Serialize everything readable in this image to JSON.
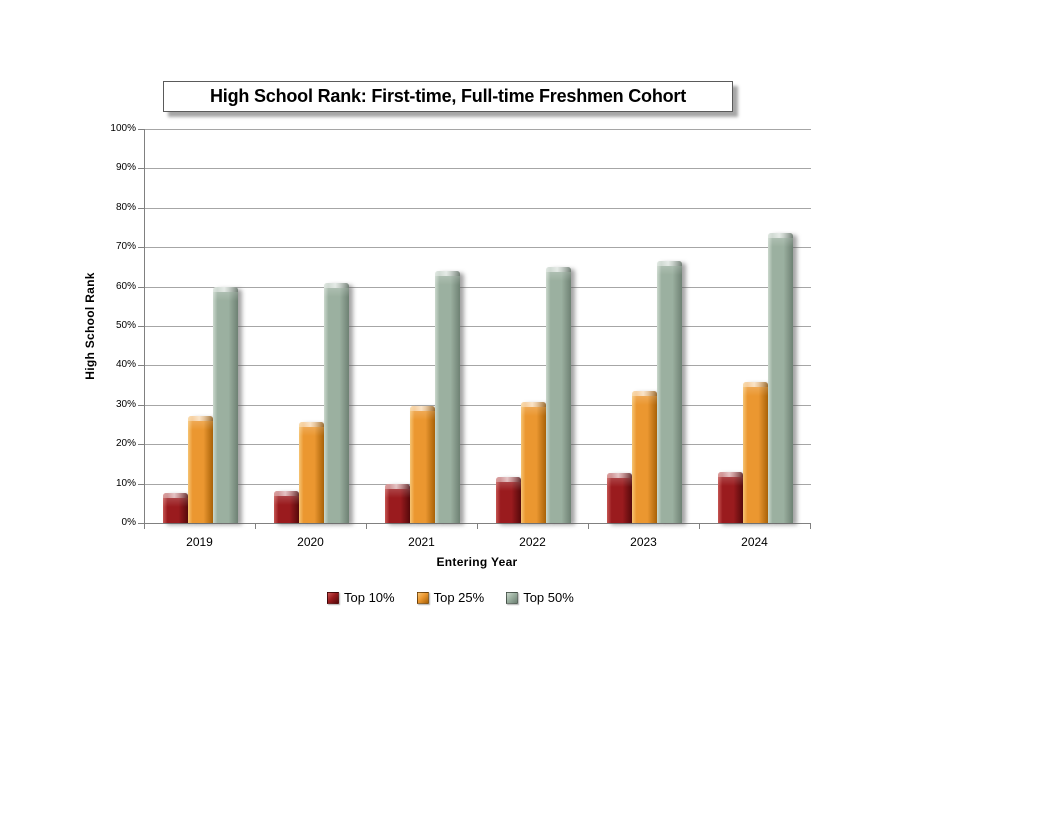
{
  "chart_data": {
    "type": "bar",
    "title": "High School Rank: First-time, Full-time Freshmen Cohort",
    "xlabel": "Entering Year",
    "ylabel": "High School Rank",
    "categories": [
      "2019",
      "2020",
      "2021",
      "2022",
      "2023",
      "2024"
    ],
    "series": [
      {
        "name": "Top 10%",
        "color": "#9a1b1e",
        "light": "#c65653",
        "dark": "#56090b",
        "values": [
          7.7,
          8.0,
          9.9,
          11.8,
          12.6,
          12.9
        ]
      },
      {
        "name": "Top 25%",
        "color": "#eb9730",
        "light": "#f6c473",
        "dark": "#a96208",
        "values": [
          27.2,
          25.7,
          29.8,
          30.8,
          33.5,
          35.9
        ]
      },
      {
        "name": "Top 50%",
        "color": "#9bb0a0",
        "light": "#cbd8cd",
        "dark": "#6e8173",
        "values": [
          59.9,
          60.8,
          63.9,
          65.0,
          66.5,
          73.6
        ]
      }
    ],
    "ylim": [
      0,
      100
    ],
    "ytick_step": 10,
    "ytick_labels": [
      "0%",
      "10%",
      "20%",
      "30%",
      "40%",
      "50%",
      "60%",
      "70%",
      "80%",
      "90%",
      "100%"
    ],
    "grid": true,
    "legend_position": "bottom"
  }
}
